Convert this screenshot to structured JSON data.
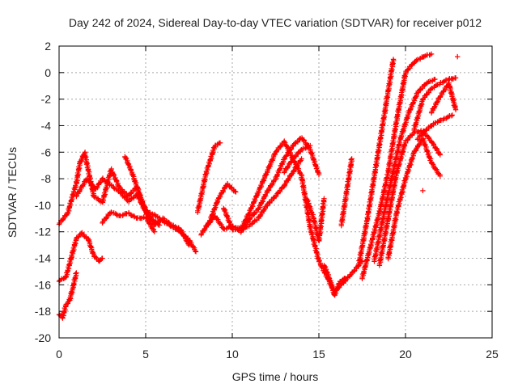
{
  "chart_data": {
    "type": "scatter",
    "title": "Day 242 of 2024, Sidereal Day-to-day VTEC variation (SDTVAR) for receiver p012",
    "xlabel": "GPS time / hours",
    "ylabel": "SDTVAR / TECUs",
    "xlim": [
      0,
      25
    ],
    "ylim": [
      -20,
      2
    ],
    "xticks": [
      0,
      5,
      10,
      15,
      20,
      25
    ],
    "yticks": [
      -20,
      -18,
      -16,
      -14,
      -12,
      -10,
      -8,
      -6,
      -4,
      -2,
      0,
      2
    ],
    "grid": true,
    "marker": "+",
    "color": "#ff0000",
    "segments": [
      {
        "x": [
          0.0,
          0.5,
          1.0,
          1.2,
          1.5
        ],
        "y": [
          -11.4,
          -10.6,
          -8.3,
          -6.8,
          -6.0
        ]
      },
      {
        "x": [
          1.5,
          2.0,
          2.5,
          3.0,
          3.5,
          4.0,
          4.5,
          5.0,
          5.5,
          6.0,
          6.5,
          7.0,
          7.5,
          7.9
        ],
        "y": [
          -6.2,
          -9.3,
          -9.8,
          -7.3,
          -8.7,
          -9.3,
          -8.6,
          -10.5,
          -10.7,
          -11.2,
          -11.6,
          -12.0,
          -12.6,
          -13.5
        ]
      },
      {
        "x": [
          1.0,
          1.6,
          2.1,
          2.5,
          3.0,
          3.5,
          4.0,
          4.5,
          5.0,
          5.5,
          6.0,
          6.5,
          7.0,
          7.5
        ],
        "y": [
          -9.3,
          -8.0,
          -8.8,
          -8.0,
          -8.5,
          -9.0,
          -9.7,
          -9.2,
          -10.5,
          -11.5,
          -11.0,
          -11.5,
          -11.8,
          -13.0
        ]
      },
      {
        "x": [
          0.0,
          0.4,
          0.8,
          1.0,
          1.3,
          1.7,
          2.0,
          2.3,
          2.5
        ],
        "y": [
          -15.7,
          -15.4,
          -13.5,
          -12.5,
          -12.1,
          -12.6,
          -13.8,
          -14.2,
          -14.0
        ]
      },
      {
        "x": [
          0.0,
          0.2,
          0.4,
          0.6,
          0.8,
          1.0
        ],
        "y": [
          -18.2,
          -18.5,
          -17.5,
          -17.2,
          -16.2,
          -15.1
        ]
      },
      {
        "x": [
          2.5,
          3.0,
          3.5,
          4.0,
          4.5,
          5.0,
          5.5
        ],
        "y": [
          -11.3,
          -10.5,
          -10.8,
          -10.6,
          -11.0,
          -10.9,
          -12.0
        ]
      },
      {
        "x": [
          3.8,
          4.2,
          4.8,
          5.3,
          5.8
        ],
        "y": [
          -6.3,
          -7.5,
          -9.8,
          -11.0,
          -11.5
        ]
      },
      {
        "x": [
          8.0,
          8.5,
          9.0,
          9.3
        ],
        "y": [
          -10.5,
          -7.5,
          -5.5,
          -5.3
        ]
      },
      {
        "x": [
          8.2,
          8.7,
          9.2,
          9.7,
          10.2
        ],
        "y": [
          -12.2,
          -11.2,
          -9.5,
          -8.4,
          -9.0
        ]
      },
      {
        "x": [
          8.5,
          9.0,
          9.5,
          10.0,
          10.5,
          11.0,
          11.5,
          12.0,
          12.5,
          13.0,
          13.5,
          14.0,
          14.5
        ],
        "y": [
          -11.6,
          -10.8,
          -11.8,
          -11.6,
          -11.8,
          -10.5,
          -9.0,
          -7.5,
          -6.0,
          -5.2,
          -6.5,
          -5.8,
          -5.5
        ]
      },
      {
        "x": [
          9.5,
          10.0,
          10.5,
          11.0,
          11.5,
          12.0,
          12.5,
          13.0,
          13.5,
          14.0
        ],
        "y": [
          -10.2,
          -11.8,
          -11.9,
          -11.5,
          -11.0,
          -10.0,
          -9.3,
          -8.5,
          -7.5,
          -6.5
        ]
      },
      {
        "x": [
          10.5,
          11.0,
          11.5,
          12.0,
          12.5,
          13.0,
          13.5,
          14.0,
          14.5,
          15.0
        ],
        "y": [
          -12.0,
          -11.0,
          -10.3,
          -9.0,
          -8.0,
          -6.5,
          -5.5,
          -4.9,
          -5.8,
          -7.7
        ]
      },
      {
        "x": [
          13.0,
          13.5,
          14.0,
          14.5,
          15.0,
          15.5,
          15.9,
          16.5,
          17.0,
          17.5
        ],
        "y": [
          -7.5,
          -6.5,
          -7.8,
          -11.7,
          -14.2,
          -15.5,
          -16.5,
          -15.7,
          -15.0,
          -14.2
        ]
      },
      {
        "x": [
          14.3,
          14.7,
          15.0,
          15.3
        ],
        "y": [
          -9.5,
          -11.0,
          -12.7,
          -9.5
        ]
      },
      {
        "x": [
          15.3,
          15.6,
          15.9,
          16.2,
          16.5
        ],
        "y": [
          -14.5,
          -15.5,
          -16.8,
          -15.8,
          -15.5
        ]
      },
      {
        "x": [
          16.3,
          16.6,
          16.9
        ],
        "y": [
          -11.5,
          -9.0,
          -6.5
        ]
      },
      {
        "x": [
          17.3,
          17.8,
          18.3,
          18.8,
          19.3
        ],
        "y": [
          -14.5,
          -11.0,
          -7.0,
          -3.0,
          1.0
        ]
      },
      {
        "x": [
          17.5,
          18.0,
          18.5,
          19.0,
          19.5,
          20.0,
          20.5,
          21.0,
          21.5
        ],
        "y": [
          -15.5,
          -13.0,
          -10.5,
          -7.5,
          -3.5,
          0.0,
          0.8,
          1.2,
          1.4
        ]
      },
      {
        "x": [
          18.2,
          18.7,
          19.2,
          19.7,
          20.2,
          20.7,
          21.2,
          21.7
        ],
        "y": [
          -14.2,
          -11.0,
          -8.0,
          -5.0,
          -3.0,
          -1.5,
          -0.8,
          -0.5
        ]
      },
      {
        "x": [
          18.5,
          19.0,
          19.5,
          20.0,
          20.5,
          21.0,
          21.5,
          22.0
        ],
        "y": [
          -14.5,
          -11.0,
          -7.5,
          -5.2,
          -4.5,
          -4.4,
          -5.2,
          -6.2
        ]
      },
      {
        "x": [
          19.0,
          19.5,
          20.0,
          20.5,
          21.0,
          21.5,
          22.0
        ],
        "y": [
          -14.0,
          -10.5,
          -8.0,
          -6.0,
          -5.0,
          -6.8,
          -7.8
        ]
      },
      {
        "x": [
          20.5,
          21.0,
          21.5,
          22.0,
          22.5,
          22.9
        ],
        "y": [
          -4.3,
          -2.0,
          -1.2,
          -0.8,
          -0.5,
          -0.4
        ]
      },
      {
        "x": [
          20.7,
          21.2,
          21.7,
          22.2,
          22.7
        ],
        "y": [
          -5.0,
          -4.3,
          -3.8,
          -3.5,
          -3.2
        ]
      },
      {
        "x": [
          21.5,
          22.0,
          22.5,
          22.9
        ],
        "y": [
          -3.0,
          -1.8,
          -0.8,
          -2.8
        ]
      },
      {
        "x": [
          21.0
        ],
        "y": [
          -8.9
        ]
      },
      {
        "x": [
          23.0
        ],
        "y": [
          1.2
        ]
      }
    ]
  }
}
